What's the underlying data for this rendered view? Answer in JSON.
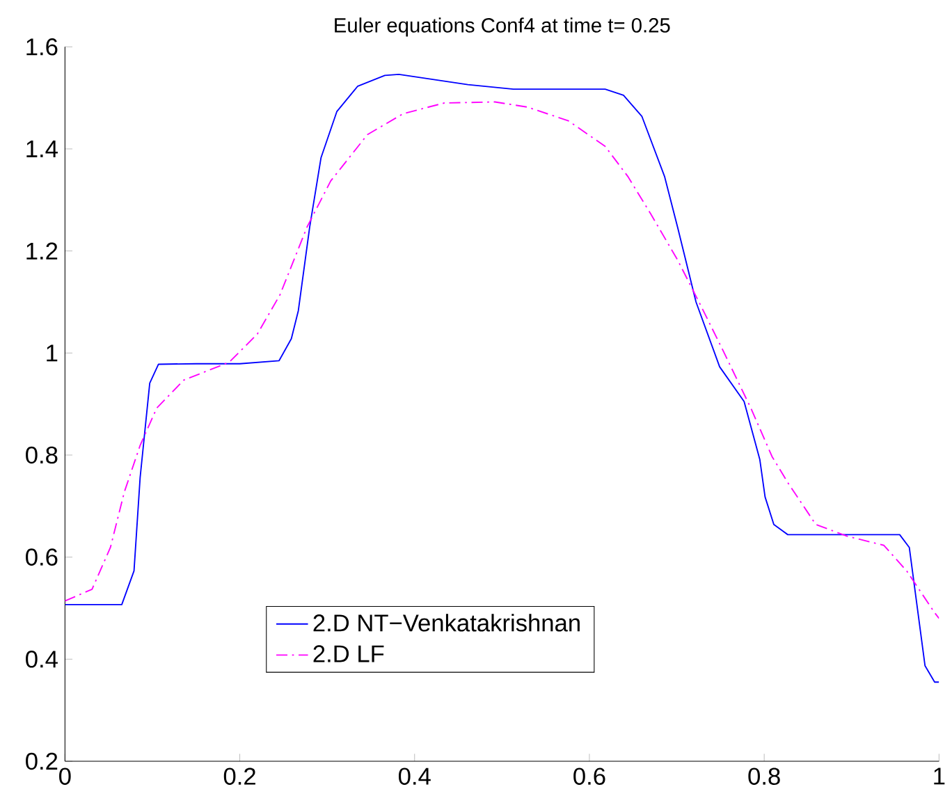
{
  "chart_data": {
    "type": "line",
    "title": "Euler equations Conf4 at time t= 0.25",
    "xlim": [
      0,
      1
    ],
    "ylim": [
      0.2,
      1.6
    ],
    "xticks": [
      0,
      0.2,
      0.4,
      0.6,
      0.8,
      1
    ],
    "yticks": [
      0.2,
      0.4,
      0.6,
      0.8,
      1,
      1.2,
      1.4,
      1.6
    ],
    "grid": false,
    "legend": "bottom",
    "marker": "none",
    "series": [
      {
        "name": "2.D NT−Venkatakrishnan",
        "color": "#0000ff",
        "line_style": "solid",
        "x": [
          0,
          0.065,
          0.079,
          0.086,
          0.097,
          0.107,
          0.15,
          0.2,
          0.245,
          0.259,
          0.267,
          0.28,
          0.293,
          0.311,
          0.335,
          0.366,
          0.382,
          0.461,
          0.513,
          0.618,
          0.639,
          0.66,
          0.686,
          0.701,
          0.722,
          0.749,
          0.777,
          0.795,
          0.801,
          0.811,
          0.827,
          0.955,
          0.966,
          0.984,
          0.995,
          1
        ],
        "values": [
          0.507,
          0.507,
          0.573,
          0.756,
          0.941,
          0.978,
          0.979,
          0.979,
          0.985,
          1.028,
          1.083,
          1.247,
          1.383,
          1.473,
          1.523,
          1.544,
          1.546,
          1.526,
          1.517,
          1.517,
          1.505,
          1.464,
          1.346,
          1.246,
          1.1,
          0.973,
          0.905,
          0.791,
          0.718,
          0.664,
          0.644,
          0.644,
          0.619,
          0.387,
          0.355,
          0.355
        ]
      },
      {
        "name": "2.D LF",
        "color": "#ff00ff",
        "line_style": "dashdot",
        "x": [
          0,
          0.031,
          0.052,
          0.068,
          0.086,
          0.105,
          0.136,
          0.188,
          0.22,
          0.246,
          0.277,
          0.304,
          0.346,
          0.387,
          0.434,
          0.492,
          0.529,
          0.576,
          0.618,
          0.644,
          0.67,
          0.701,
          0.728,
          0.754,
          0.785,
          0.809,
          0.827,
          0.859,
          0.895,
          0.937,
          0.963,
          0.995,
          1
        ],
        "values": [
          0.514,
          0.537,
          0.619,
          0.728,
          0.819,
          0.892,
          0.947,
          0.982,
          1.037,
          1.114,
          1.247,
          1.337,
          1.428,
          1.469,
          1.49,
          1.492,
          1.482,
          1.455,
          1.405,
          1.346,
          1.273,
          1.182,
          1.091,
          1.001,
          0.891,
          0.797,
          0.746,
          0.664,
          0.641,
          0.623,
          0.573,
          0.491,
          0.48
        ]
      }
    ]
  }
}
